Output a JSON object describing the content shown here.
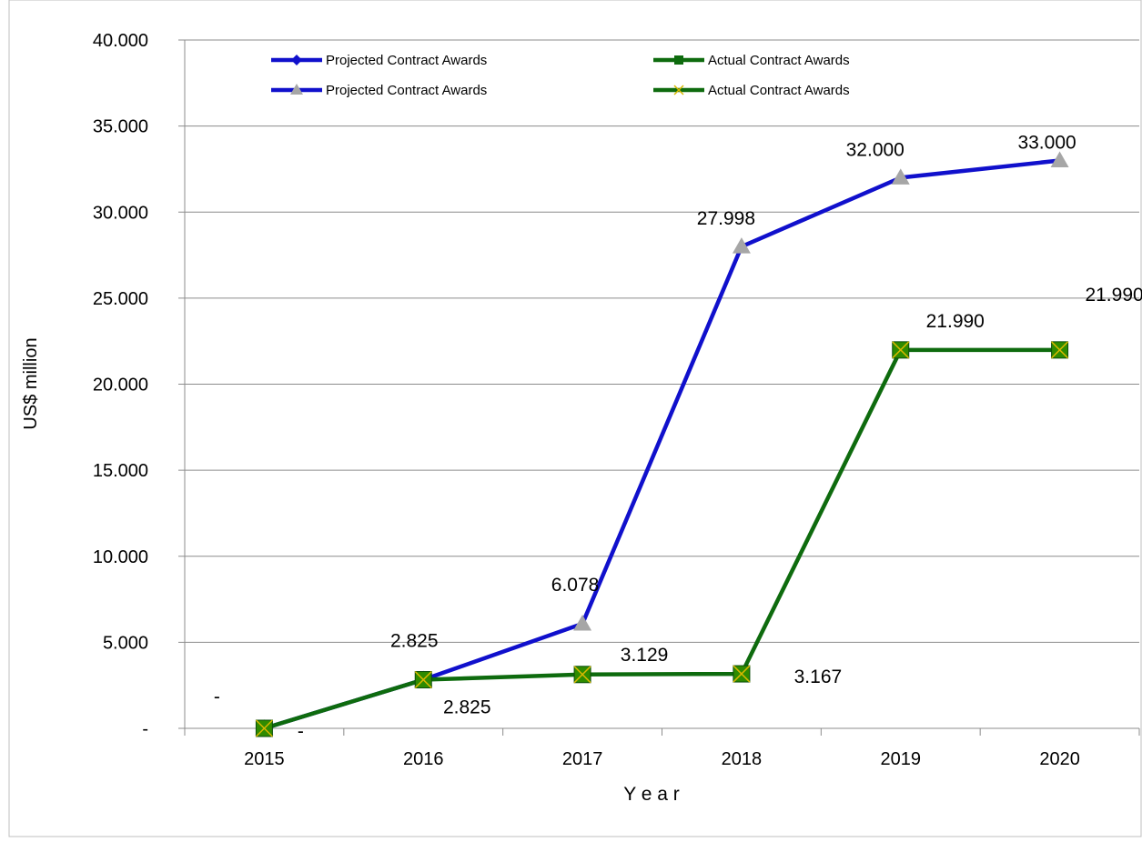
{
  "chart_data": {
    "type": "line",
    "title": "",
    "xlabel": "Y e a r",
    "ylabel": "US$ million",
    "categories": [
      "2015",
      "2016",
      "2017",
      "2018",
      "2019",
      "2020"
    ],
    "ylim": [
      0,
      40000
    ],
    "yticks": [
      0,
      5000,
      10000,
      15000,
      20000,
      25000,
      30000,
      35000,
      40000
    ],
    "ytick_labels": [
      "-",
      "5.000",
      "10.000",
      "15.000",
      "20.000",
      "25.000",
      "30.000",
      "35.000",
      "40.000"
    ],
    "grid": "horizontal",
    "legend_position": "top",
    "series": [
      {
        "name": "Projected Contract Awards",
        "color": "#1010CC",
        "marker_color": "#A6A6A6",
        "marker": "triangle",
        "values": [
          0,
          2825,
          6078,
          27998,
          32000,
          33000
        ],
        "data_labels": [
          "-",
          "2.825",
          "6.078",
          "27.998",
          "32.000",
          "33.000"
        ]
      },
      {
        "name": "Actual Contract Awards",
        "color": "#0E6B0E",
        "marker_color": "#2E8B00",
        "marker": "square-x",
        "values": [
          0,
          2825,
          3129,
          3167,
          21990,
          21990
        ],
        "data_labels": [
          "-",
          "2.825",
          "3.129",
          "3.167",
          "21.990",
          "21.990"
        ]
      }
    ],
    "legend": [
      {
        "label": "Projected Contract Awards",
        "series": 0,
        "marker": "diamond"
      },
      {
        "label": "Actual Contract Awards",
        "series": 1,
        "marker": "square"
      },
      {
        "label": "Projected Contract Awards",
        "series": 0,
        "marker": "triangle"
      },
      {
        "label": "Actual Contract Awards",
        "series": 1,
        "marker": "x"
      }
    ]
  }
}
